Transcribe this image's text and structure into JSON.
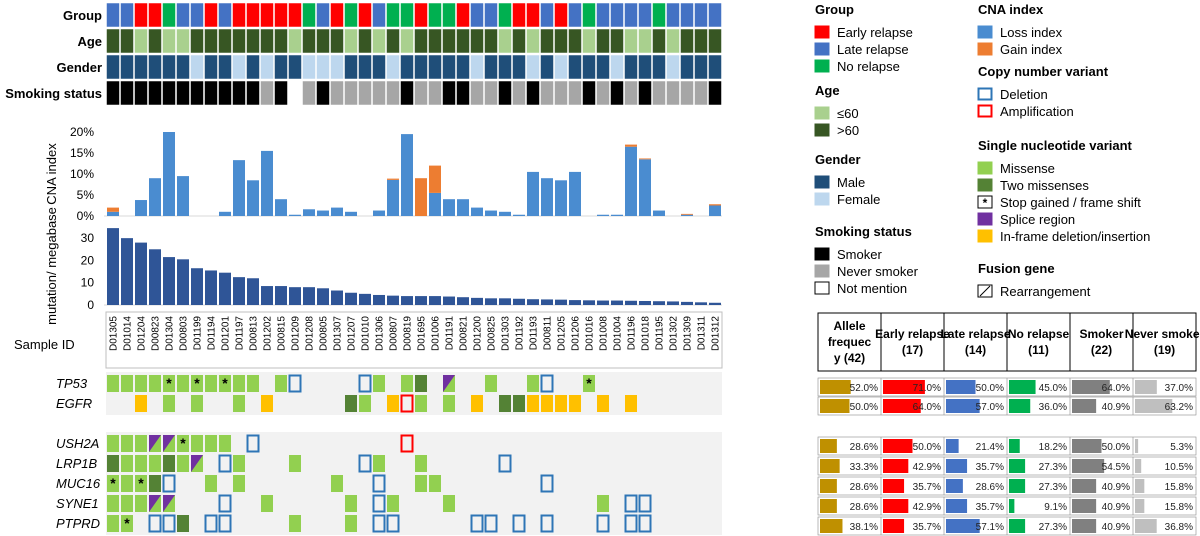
{
  "chart_data": [
    {
      "type": "heatmap",
      "section": "annotations",
      "tracks": [
        {
          "label": "Group",
          "values": [
            "L",
            "L",
            "E",
            "E",
            "N",
            "L",
            "L",
            "E",
            "L",
            "E",
            "E",
            "E",
            "E",
            "E",
            "N",
            "L",
            "E",
            "N",
            "E",
            "L",
            "N",
            "N",
            "E",
            "N",
            "N",
            "E",
            "L",
            "L",
            "N",
            "E",
            "E",
            "L",
            "E",
            "L",
            "N",
            "L",
            "L",
            "L",
            "L",
            "N",
            "L",
            "L",
            "L",
            "L"
          ]
        },
        {
          "label": "Age",
          "values": [
            "O",
            "O",
            "Y",
            "O",
            "Y",
            "Y",
            "O",
            "O",
            "O",
            "O",
            "O",
            "O",
            "O",
            "Y",
            "O",
            "O",
            "O",
            "Y",
            "O",
            "Y",
            "O",
            "Y",
            "O",
            "O",
            "O",
            "O",
            "O",
            "O",
            "Y",
            "O",
            "Y",
            "O",
            "O",
            "O",
            "Y",
            "O",
            "O",
            "Y",
            "Y",
            "O",
            "Y",
            "O",
            "O",
            "O"
          ]
        },
        {
          "label": "Gender",
          "values": [
            "M",
            "M",
            "M",
            "M",
            "M",
            "M",
            "F",
            "M",
            "M",
            "F",
            "M",
            "F",
            "M",
            "M",
            "F",
            "F",
            "F",
            "M",
            "M",
            "M",
            "F",
            "M",
            "M",
            "M",
            "M",
            "M",
            "F",
            "M",
            "M",
            "M",
            "F",
            "M",
            "F",
            "M",
            "M",
            "M",
            "F",
            "M",
            "M",
            "M",
            "F",
            "M",
            "M",
            "M"
          ]
        },
        {
          "label": "Smoking status",
          "values": [
            "S",
            "S",
            "S",
            "S",
            "S",
            "S",
            "S",
            "S",
            "S",
            "S",
            "S",
            "N",
            "S",
            "U",
            "N",
            "S",
            "N",
            "N",
            "N",
            "N",
            "N",
            "S",
            "N",
            "N",
            "S",
            "S",
            "N",
            "N",
            "S",
            "N",
            "S",
            "N",
            "N",
            "N",
            "S",
            "N",
            "S",
            "N",
            "S",
            "N",
            "N",
            "N",
            "N",
            "S"
          ]
        }
      ]
    },
    {
      "type": "bar",
      "ylabel": "CNA index",
      "ylim": [
        0,
        20
      ],
      "yticks": [
        "0%",
        "5%",
        "10%",
        "15%",
        "20%"
      ],
      "series": [
        {
          "name": "Loss index",
          "values": [
            1,
            0,
            3.8,
            9,
            20,
            9.5,
            0,
            0,
            1,
            13.3,
            8.5,
            15.5,
            4,
            0.3,
            1.6,
            1.3,
            2,
            1,
            0,
            1.3,
            8.6,
            19.5,
            0,
            5.5,
            4,
            4,
            2,
            1.3,
            1,
            0.3,
            10.5,
            9,
            8.5,
            10.5,
            0,
            0.3,
            0.3,
            16.5,
            13.5,
            1.3,
            0,
            0.3,
            0,
            2.5
          ]
        },
        {
          "name": "Gain index",
          "values": [
            1,
            0,
            0,
            0,
            0,
            0,
            0,
            0,
            0,
            0,
            0,
            0,
            0,
            0,
            0,
            0,
            0,
            0,
            0,
            0,
            0.3,
            0,
            9,
            6.5,
            0,
            0,
            0,
            0,
            0,
            0,
            0,
            0,
            0,
            0,
            0,
            0,
            0,
            0.5,
            0.2,
            0,
            0,
            0.2,
            0,
            0.3
          ]
        }
      ]
    },
    {
      "type": "bar",
      "ylabel": "mutation/ megabase",
      "ylim": [
        0,
        35
      ],
      "yticks": [
        "0",
        "10",
        "20",
        "30"
      ],
      "values": [
        34.5,
        30,
        28,
        25,
        21.5,
        20.5,
        16.5,
        15.5,
        14.5,
        12.5,
        12,
        8.5,
        8.5,
        8,
        8,
        7.5,
        6.5,
        5.5,
        5,
        4.5,
        4.2,
        4,
        4,
        4,
        3.8,
        3.5,
        3.2,
        3,
        3,
        2.8,
        2.6,
        2.5,
        2.4,
        2.2,
        2.1,
        2,
        2,
        1.9,
        1.8,
        1.7,
        1.6,
        1.4,
        1.2,
        1
      ]
    },
    {
      "type": "heatmap",
      "section": "mutations",
      "xlabel": "Sample ID",
      "categories": [
        "D01305",
        "D01014",
        "D01204",
        "D00823",
        "D01304",
        "D00803",
        "D01199",
        "D01194",
        "D01201",
        "D01197",
        "D00813",
        "D01202",
        "D00815",
        "D01209",
        "D01208",
        "D00805",
        "D01307",
        "D01207",
        "D01010",
        "D01306",
        "D00807",
        "D00819",
        "D01695",
        "D01006",
        "D01191",
        "D00821",
        "D01200",
        "D00825",
        "D01303",
        "D01192",
        "D01193",
        "D00811",
        "D01205",
        "D01206",
        "D01016",
        "D01008",
        "D01004",
        "D01196",
        "D01018",
        "D01195",
        "D01302",
        "D01309",
        "D01311",
        "D01312"
      ],
      "genes": [
        "TP53",
        "EGFR",
        "USH2A",
        "LRP1B",
        "MUC16",
        "SYNE1",
        "PTPRD"
      ],
      "legend": {
        "Missense": "#92d050",
        "Two missenses": "#548235",
        "Stop gained / frame shift": "*",
        "Splice region": "#7030a0",
        "In-frame deletion/insertion": "#ffc000",
        "Deletion": "#2e75b6",
        "Amplification": "#ff0000"
      },
      "cells": {
        "TP53": {
          "0": "M",
          "1": "M",
          "2": "M",
          "3": "M",
          "4": "S",
          "5": "M",
          "6": "S",
          "7": "M",
          "8": "S",
          "9": "M",
          "10": "M",
          "12": "M",
          "13": "D",
          "18": "D",
          "19": "M",
          "21": "M",
          "22": "T",
          "24": "P",
          "27": "M",
          "30": "M",
          "31": "D",
          "34": "S"
        },
        "EGFR": {
          "2": "I",
          "4": "M",
          "6": "M",
          "9": "M",
          "11": "I",
          "17": "T",
          "18": "M",
          "20": "I",
          "21": "A",
          "22": "M",
          "24": "M",
          "26": "I",
          "28": "T",
          "29": "T",
          "30": "I",
          "31": "I",
          "32": "I",
          "33": "I",
          "35": "I",
          "37": "I"
        },
        "USH2A": {
          "0": "M",
          "1": "M",
          "2": "M",
          "3": "P",
          "4": "P",
          "5": "S",
          "6": "M",
          "7": "M",
          "8": "M",
          "10": "D",
          "21": "A"
        },
        "LRP1B": {
          "0": "T",
          "1": "M",
          "2": "M",
          "3": "M",
          "4": "T",
          "5": "M",
          "6": "P",
          "8": "D",
          "9": "M",
          "13": "M",
          "18": "D",
          "19": "M",
          "22": "M",
          "28": "D"
        },
        "MUC16": {
          "0": "S",
          "1": "M",
          "2": "S",
          "3": "T",
          "4": "D",
          "7": "M",
          "9": "M",
          "16": "M",
          "19": "D",
          "22": "M",
          "23": "M",
          "31": "D"
        },
        "SYNE1": {
          "0": "M",
          "1": "M",
          "2": "M",
          "3": "P",
          "4": "P",
          "8": "D",
          "11": "M",
          "17": "M",
          "19": "D",
          "20": "M",
          "24": "M",
          "35": "M",
          "37": "D",
          "38": "D"
        },
        "PTPRD": {
          "0": "M",
          "1": "S",
          "3": "D",
          "4": "D",
          "5": "T",
          "7": "D",
          "8": "D",
          "13": "M",
          "17": "M",
          "19": "D",
          "20": "D",
          "26": "D",
          "27": "D",
          "29": "D",
          "31": "D",
          "35": "D",
          "37": "D",
          "38": "D"
        }
      }
    },
    {
      "type": "table",
      "columns": [
        "Allele frequecy (42)",
        "Early relapse (17)",
        "Late relapse (14)",
        "No relapse (11)",
        "Smoker (22)",
        "Never smoker (19)"
      ],
      "column_colors": [
        "#bf9000",
        "#ff0000",
        "#4472c4",
        "#00b050",
        "#808080",
        "#bfbfbf"
      ],
      "rows": [
        {
          "gene": "TP53",
          "values": [
            52.0,
            71.0,
            50.0,
            45.0,
            64.0,
            37.0
          ],
          "labels": [
            "52.0%",
            "71.0%",
            "50.0%",
            "45.0%",
            "64.0%",
            "37.0%"
          ]
        },
        {
          "gene": "EGFR",
          "values": [
            50.0,
            64.0,
            57.0,
            36.0,
            40.9,
            63.2
          ],
          "labels": [
            "50.0%",
            "64.0%",
            "57.0%",
            "36.0%",
            "40.9%",
            "63.2%"
          ]
        },
        {
          "gene": "USH2A",
          "values": [
            28.6,
            50.0,
            21.4,
            18.2,
            50.0,
            5.3
          ],
          "labels": [
            "28.6%",
            "50.0%",
            "21.4%",
            "18.2%",
            "50.0%",
            "5.3%"
          ]
        },
        {
          "gene": "LRP1B",
          "values": [
            33.3,
            42.9,
            35.7,
            27.3,
            54.5,
            10.5
          ],
          "labels": [
            "33.3%",
            "42.9%",
            "35.7%",
            "27.3%",
            "54.5%",
            "10.5%"
          ]
        },
        {
          "gene": "MUC16",
          "values": [
            28.6,
            35.7,
            28.6,
            27.3,
            40.9,
            15.8
          ],
          "labels": [
            "28.6%",
            "35.7%",
            "28.6%",
            "27.3%",
            "40.9%",
            "15.8%"
          ]
        },
        {
          "gene": "SYNE1",
          "values": [
            28.6,
            42.9,
            35.7,
            9.1,
            40.9,
            15.8
          ],
          "labels": [
            "28.6%",
            "42.9%",
            "35.7%",
            "9.1%",
            "40.9%",
            "15.8%"
          ]
        },
        {
          "gene": "PTPRD",
          "values": [
            38.1,
            35.7,
            57.1,
            27.3,
            40.9,
            36.8
          ],
          "labels": [
            "38.1%",
            "35.7%",
            "57.1%",
            "27.3%",
            "40.9%",
            "36.8%"
          ]
        }
      ]
    }
  ],
  "legend": {
    "group": {
      "title": "Group",
      "items": [
        {
          "label": "Early relapse",
          "color": "#ff0000"
        },
        {
          "label": "Late relapse",
          "color": "#4472c4"
        },
        {
          "label": "No relapse",
          "color": "#00b050"
        }
      ]
    },
    "age": {
      "title": "Age",
      "items": [
        {
          "label": "≤60",
          "color": "#a9d08e"
        },
        {
          "label": ">60",
          "color": "#375623"
        }
      ]
    },
    "gender": {
      "title": "Gender",
      "items": [
        {
          "label": "Male",
          "color": "#1f4e79"
        },
        {
          "label": "Female",
          "color": "#bdd7ee"
        }
      ]
    },
    "smoking": {
      "title": "Smoking status",
      "items": [
        {
          "label": "Smoker",
          "color": "#000000"
        },
        {
          "label": "Never smoker",
          "color": "#a6a6a6"
        },
        {
          "label": "Not mention",
          "color": "#ffffff"
        }
      ]
    },
    "cna": {
      "title": "CNA index",
      "items": [
        {
          "label": "Loss index",
          "color": "#4a8cd0"
        },
        {
          "label": "Gain index",
          "color": "#ed7d31"
        }
      ]
    },
    "cnv": {
      "title": "Copy number variant",
      "items": [
        {
          "label": "Deletion",
          "color": "#2e75b6"
        },
        {
          "label": "Amplification",
          "color": "#ff0000"
        }
      ]
    },
    "snv": {
      "title": "Single nucleotide variant",
      "items": [
        {
          "label": "Missense",
          "color": "#92d050"
        },
        {
          "label": "Two missenses",
          "color": "#548235"
        },
        {
          "label": "Stop gained / frame shift",
          "color": "*"
        },
        {
          "label": "Splice region",
          "color": "#7030a0"
        },
        {
          "label": "In-frame deletion/insertion",
          "color": "#ffc000"
        }
      ]
    },
    "fusion": {
      "title": "Fusion gene",
      "items": [
        {
          "label": "Rearrangement",
          "color": "/"
        }
      ]
    }
  },
  "colors": {
    "early": "#ff0000",
    "late": "#4472c4",
    "none": "#00b050",
    "young": "#a9d08e",
    "old": "#375623",
    "male": "#1f4e79",
    "female": "#bdd7ee",
    "smoker": "#000000",
    "never": "#a6a6a6",
    "unknown": "#ffffff",
    "loss": "#4a8cd0",
    "gain": "#ed7d31",
    "tmb": "#2f5597",
    "missense": "#92d050",
    "two": "#548235",
    "splice": "#7030a0",
    "inframe": "#ffc000",
    "deletion": "#2e75b6",
    "amplification": "#ff0000",
    "cellbg": "#f2f2f2"
  }
}
